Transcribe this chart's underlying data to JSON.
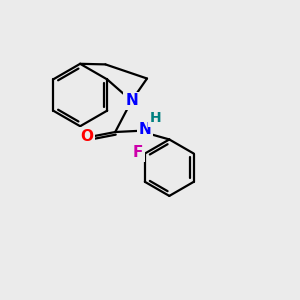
{
  "background_color": "#ebebeb",
  "atom_colors": {
    "N": "#0000ff",
    "O": "#ff0000",
    "F": "#cc00aa",
    "H": "#008080",
    "C": "#000000"
  },
  "bond_color": "#000000",
  "bond_width": 1.6,
  "figsize": [
    3.0,
    3.0
  ],
  "dpi": 100
}
